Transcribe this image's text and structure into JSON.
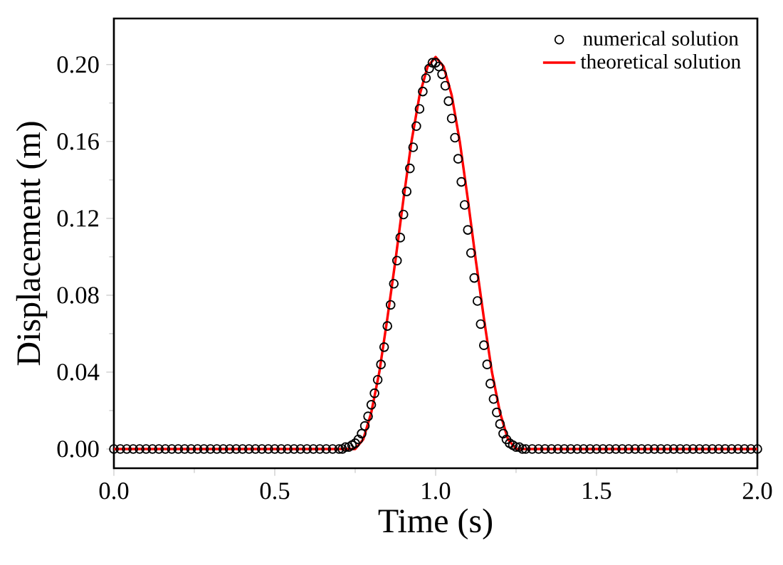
{
  "chart_data": {
    "type": "line",
    "xlabel": "Time (s)",
    "ylabel": "Displacement (m)",
    "xlim": [
      0,
      2
    ],
    "ylim": [
      -0.01,
      0.224
    ],
    "xticks": [
      {
        "value": 0,
        "label": "0.0"
      },
      0.5,
      {
        "value": 1,
        "label": "1.0"
      },
      1.5,
      {
        "value": 2,
        "label": "2.0"
      }
    ],
    "yticks": [
      {
        "value": 0,
        "label": "0.00"
      },
      0.04,
      0.08,
      0.12,
      0.16,
      {
        "value": 0.2,
        "label": "0.20"
      }
    ],
    "legend": "top right",
    "grid": false,
    "series": [
      {
        "name": "numerical solution",
        "type": "scatter",
        "color": "#000000",
        "x": [
          0,
          0.02,
          0.04,
          0.06,
          0.08,
          0.1,
          0.12,
          0.14,
          0.16,
          0.18,
          0.2,
          0.22,
          0.24,
          0.26,
          0.28,
          0.3,
          0.32,
          0.34,
          0.36,
          0.38,
          0.4,
          0.42,
          0.44,
          0.46,
          0.48,
          0.5,
          0.52,
          0.54,
          0.56,
          0.58,
          0.6,
          0.62,
          0.64,
          0.66,
          0.68,
          0.7,
          0.71,
          0.72,
          0.73,
          0.74,
          0.75,
          0.76,
          0.77,
          0.78,
          0.79,
          0.8,
          0.81,
          0.82,
          0.83,
          0.84,
          0.85,
          0.86,
          0.87,
          0.88,
          0.89,
          0.9,
          0.91,
          0.92,
          0.93,
          0.94,
          0.95,
          0.96,
          0.97,
          0.98,
          0.99,
          1.0,
          1.01,
          1.02,
          1.03,
          1.04,
          1.05,
          1.06,
          1.07,
          1.08,
          1.09,
          1.1,
          1.11,
          1.12,
          1.13,
          1.14,
          1.15,
          1.16,
          1.17,
          1.18,
          1.19,
          1.2,
          1.21,
          1.22,
          1.23,
          1.24,
          1.25,
          1.26,
          1.27,
          1.28,
          1.3,
          1.32,
          1.34,
          1.36,
          1.38,
          1.4,
          1.42,
          1.44,
          1.46,
          1.48,
          1.5,
          1.52,
          1.54,
          1.56,
          1.58,
          1.6,
          1.62,
          1.64,
          1.66,
          1.68,
          1.7,
          1.72,
          1.74,
          1.76,
          1.78,
          1.8,
          1.82,
          1.84,
          1.86,
          1.88,
          1.9,
          1.92,
          1.94,
          1.96,
          1.98,
          2.0
        ],
        "values": [
          0,
          0,
          0,
          0,
          0,
          0,
          0,
          0,
          0,
          0,
          0,
          0,
          0,
          0,
          0,
          0,
          0,
          0,
          0,
          0,
          0,
          0,
          0,
          0,
          0,
          0,
          0,
          0,
          0,
          0,
          0,
          0,
          0,
          0,
          0,
          0,
          0,
          0.001,
          0.001,
          0.002,
          0.003,
          0.005,
          0.008,
          0.012,
          0.017,
          0.023,
          0.029,
          0.036,
          0.044,
          0.053,
          0.064,
          0.075,
          0.086,
          0.098,
          0.11,
          0.122,
          0.134,
          0.146,
          0.157,
          0.168,
          0.177,
          0.186,
          0.193,
          0.198,
          0.201,
          0.201,
          0.199,
          0.195,
          0.189,
          0.181,
          0.172,
          0.162,
          0.151,
          0.139,
          0.127,
          0.114,
          0.102,
          0.089,
          0.077,
          0.065,
          0.054,
          0.044,
          0.034,
          0.026,
          0.019,
          0.013,
          0.008,
          0.005,
          0.003,
          0.002,
          0.001,
          0.001,
          0,
          0,
          0,
          0,
          0,
          0,
          0,
          0,
          0,
          0,
          0,
          0,
          0,
          0,
          0,
          0,
          0,
          0,
          0,
          0,
          0,
          0,
          0,
          0,
          0,
          0,
          0,
          0,
          0,
          0,
          0,
          0,
          0,
          0,
          0,
          0,
          0,
          0
        ]
      },
      {
        "name": "theoretical solution",
        "color": "#ff0000",
        "x": [
          0,
          0.75,
          0.775,
          0.8,
          0.825,
          0.85,
          0.875,
          0.9,
          0.925,
          0.95,
          0.975,
          1.0,
          1.025,
          1.05,
          1.075,
          1.1,
          1.125,
          1.15,
          1.175,
          1.2,
          1.225,
          1.25,
          2.0
        ],
        "values": [
          0,
          0,
          0.005,
          0.019,
          0.04,
          0.068,
          0.098,
          0.13,
          0.16,
          0.184,
          0.199,
          0.204,
          0.199,
          0.184,
          0.16,
          0.13,
          0.098,
          0.068,
          0.04,
          0.019,
          0.005,
          0,
          0
        ]
      }
    ]
  }
}
